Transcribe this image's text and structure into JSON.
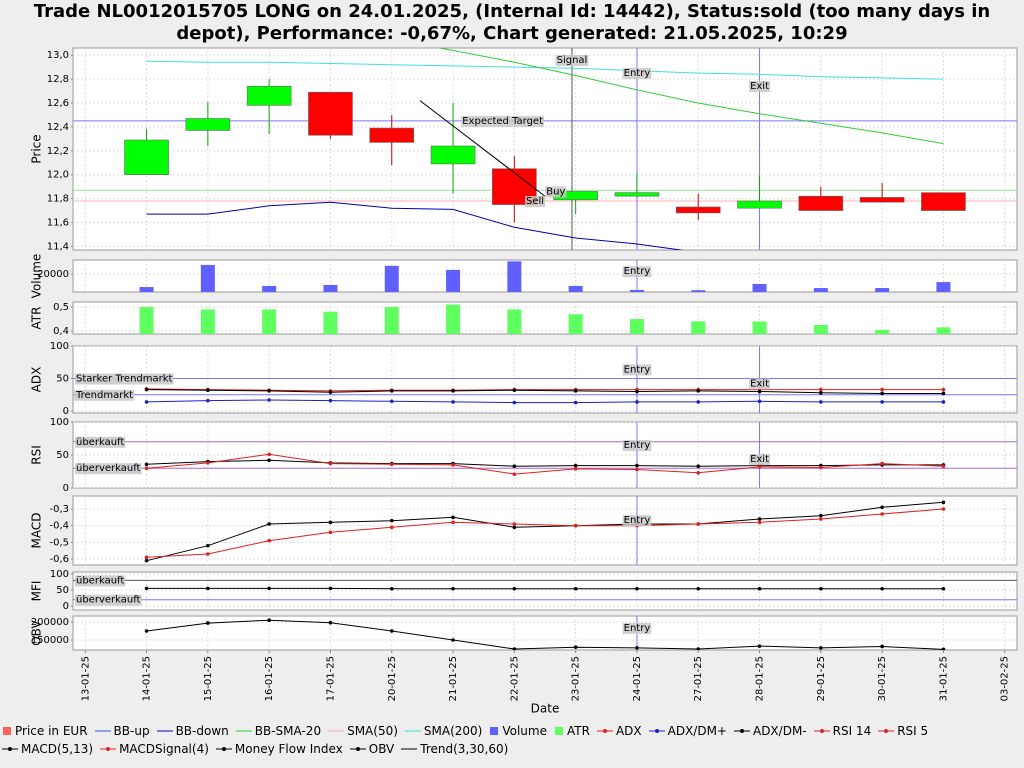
{
  "title": [
    "Trade NL0012015705 LONG on 24.01.2025, (Internal Id: 14442), Status:sold (too many days in",
    "depot), Performance: -0,67%, Chart generated: 21.05.2025, 10:29"
  ],
  "legend": [
    {
      "name": "Price in EUR",
      "color": "#ff6060",
      "marker": "square"
    },
    {
      "name": "BB-up",
      "color": "#3050ff",
      "marker": "line"
    },
    {
      "name": "BB-down",
      "color": "#0000aa",
      "marker": "line"
    },
    {
      "name": "BB-SMA-20",
      "color": "#33cc33",
      "marker": "line"
    },
    {
      "name": "SMA(50)",
      "color": "#ffb0b0",
      "marker": "line"
    },
    {
      "name": "SMA(200)",
      "color": "#40e0e0",
      "marker": "line"
    },
    {
      "name": "Volume",
      "color": "#6060ff",
      "marker": "square"
    },
    {
      "name": "ATR",
      "color": "#60ff60",
      "marker": "square"
    },
    {
      "name": "ADX",
      "color": "#e02020",
      "marker": "line-dot"
    },
    {
      "name": "ADX/DM+",
      "color": "#2020c0",
      "marker": "line-dot"
    },
    {
      "name": "ADX/DM-",
      "color": "#000000",
      "marker": "line-dot"
    },
    {
      "name": "RSI 14",
      "color": "#e02020",
      "marker": "line-dot"
    },
    {
      "name": "RSI 5",
      "color": "#e02020",
      "marker": "line-dot"
    },
    {
      "name": "MACD(5,13)",
      "color": "#000000",
      "marker": "line-dot"
    },
    {
      "name": "MACDSignal(4)",
      "color": "#e02020",
      "marker": "line-dot"
    },
    {
      "name": "Money Flow Index",
      "color": "#000000",
      "marker": "line-dot"
    },
    {
      "name": "OBV",
      "color": "#000000",
      "marker": "line-dot"
    },
    {
      "name": "Trend(3,30,60)",
      "color": "#000000",
      "marker": "line"
    }
  ],
  "chart_data": [
    {
      "type": "candlestick",
      "ylabel": "Price",
      "ylim": [
        11.37,
        13.06
      ],
      "grid": true,
      "yticks": [
        {
          "value": 11.4,
          "label": "11,4"
        },
        {
          "value": 11.6,
          "label": "11,6"
        },
        {
          "value": 11.8,
          "label": "11,8"
        },
        {
          "value": 12.0,
          "label": "12,0"
        },
        {
          "value": 12.2,
          "label": "12,2"
        },
        {
          "value": 12.4,
          "label": "12,4"
        },
        {
          "value": 12.6,
          "label": "12,6"
        },
        {
          "value": 12.8,
          "label": "12,8"
        },
        {
          "value": 13.0,
          "label": "13,0"
        }
      ],
      "candles": {
        "up_color": "#00ff00",
        "down_color": "#ff0000",
        "open": [
          null,
          12.0,
          12.37,
          12.58,
          12.69,
          12.39,
          12.09,
          12.05,
          11.79,
          11.82,
          11.73,
          11.72,
          11.82,
          11.81,
          11.85,
          null
        ],
        "high": [
          null,
          12.38,
          12.61,
          12.8,
          12.69,
          12.5,
          12.6,
          12.16,
          11.86,
          12.01,
          11.84,
          11.99,
          11.9,
          11.93,
          11.85,
          null
        ],
        "low": [
          null,
          12.0,
          12.24,
          12.34,
          12.3,
          12.08,
          11.84,
          11.6,
          11.67,
          11.81,
          11.62,
          11.72,
          11.7,
          11.77,
          11.7,
          null
        ],
        "close": [
          null,
          12.29,
          12.47,
          12.74,
          12.33,
          12.27,
          12.24,
          11.75,
          11.86,
          11.85,
          11.68,
          11.78,
          11.7,
          11.77,
          11.7,
          null
        ]
      },
      "series": [
        {
          "color": "#0000aa",
          "values": [
            null,
            11.67,
            11.67,
            11.74,
            11.77,
            11.72,
            11.71,
            11.56,
            11.47,
            11.42,
            11.35,
            null,
            null,
            null,
            null,
            null
          ]
        },
        {
          "color": "#40e0e0",
          "values": [
            null,
            12.95,
            12.94,
            12.94,
            12.93,
            12.92,
            12.91,
            12.9,
            12.89,
            12.87,
            12.85,
            12.84,
            12.82,
            12.81,
            12.8,
            null
          ]
        },
        {
          "color": "#33cc33",
          "values": [
            null,
            null,
            null,
            null,
            null,
            13.13,
            13.04,
            12.94,
            12.83,
            12.71,
            12.6,
            12.51,
            12.43,
            12.35,
            12.26,
            null
          ]
        }
      ],
      "hlines": [
        {
          "value": 12.45,
          "color": "#7777ff",
          "label": "Expected Target"
        },
        {
          "value": 11.87,
          "color": "#99e099"
        },
        {
          "value": 11.78,
          "color": "#ffb0b0"
        }
      ],
      "vlines": [
        {
          "x": 7.94,
          "color": "#555555",
          "label": "Signal"
        },
        {
          "x": 9,
          "color": "#7777ff",
          "label": "Entry"
        },
        {
          "x": 11,
          "color": "#7777ff",
          "label": "Exit"
        }
      ],
      "trend": {
        "color": "#000000",
        "x": [
          5.46,
          7.5
        ],
        "y": [
          12.62,
          11.82
        ]
      },
      "notes": [
        {
          "text": "Buy",
          "x": 7.52,
          "y": 11.86
        },
        {
          "text": "Sell",
          "x": 7.19,
          "y": 11.78
        }
      ]
    },
    {
      "type": "bar",
      "ylabel": "Volume",
      "ylim": [
        0,
        35500
      ],
      "yticks": [
        20000
      ],
      "grid": true,
      "series": [
        {
          "color": "#6060ff",
          "values": [
            null,
            5500,
            30000,
            6700,
            7800,
            29000,
            24500,
            34000,
            6700,
            2200,
            2000,
            8900,
            4400,
            4400,
            11000,
            null
          ]
        }
      ],
      "vlines": [
        {
          "x": 9,
          "color": "#7777ff",
          "label": "Entry"
        }
      ]
    },
    {
      "type": "bar",
      "ylabel": "ATR",
      "ylim": [
        0.3875,
        0.5208
      ],
      "grid": true,
      "yticks": [
        {
          "value": 0.4,
          "label": "0,4"
        },
        {
          "value": 0.5,
          "label": "0,5"
        }
      ],
      "series": [
        {
          "color": "#60ff60",
          "values": [
            null,
            0.5,
            0.49,
            0.49,
            0.48,
            0.5,
            0.51,
            0.49,
            0.47,
            0.45,
            0.44,
            0.44,
            0.425,
            0.405,
            0.415,
            null
          ]
        }
      ]
    },
    {
      "type": "line",
      "ylabel": "ADX",
      "ylim": [
        -3,
        100
      ],
      "yticks": [
        0,
        50,
        100
      ],
      "grid": true,
      "series": [
        {
          "color": "#e02020",
          "markers": true,
          "values": [
            null,
            34,
            33,
            32,
            31,
            32,
            32,
            33,
            33,
            33,
            33,
            33,
            33,
            33,
            33,
            null
          ]
        },
        {
          "color": "#2020c0",
          "markers": true,
          "values": [
            null,
            14,
            16,
            17,
            16,
            15,
            14,
            13,
            13,
            14,
            14,
            15,
            14,
            14,
            14,
            null
          ]
        },
        {
          "color": "#000000",
          "markers": true,
          "values": [
            null,
            33,
            32,
            31,
            29,
            31,
            31,
            32,
            31,
            30,
            31,
            30,
            28,
            27,
            27,
            null
          ]
        }
      ],
      "hlines": [
        {
          "value": 50,
          "color": "#7777ff",
          "label": "Starker Trendmarkt"
        },
        {
          "value": 25,
          "color": "#7777ff",
          "label": "Trendmarkt"
        }
      ],
      "vlines": [
        {
          "x": 9,
          "color": "#7777ff",
          "label": "Entry"
        },
        {
          "x": 11,
          "color": "#7777ff",
          "label": "Exit"
        }
      ]
    },
    {
      "type": "line",
      "ylabel": "RSI",
      "ylim": [
        0,
        100
      ],
      "yticks": [
        0,
        50,
        100
      ],
      "grid": true,
      "series": [
        {
          "color": "#000000",
          "markers": true,
          "values": [
            null,
            36,
            40,
            42,
            38,
            37,
            37,
            33,
            34,
            34,
            33,
            34,
            34,
            35,
            35,
            null
          ]
        },
        {
          "color": "#e02020",
          "markers": true,
          "values": [
            null,
            30,
            38,
            51,
            37,
            36,
            35,
            21,
            29,
            28,
            23,
            32,
            31,
            37,
            33,
            null
          ]
        }
      ],
      "hlines": [
        {
          "value": 70,
          "color": "#aa66cc",
          "label": "überkauft"
        },
        {
          "value": 30,
          "color": "#aa66cc",
          "label": "überverkauft"
        }
      ],
      "vlines": [
        {
          "x": 9,
          "color": "#7777ff",
          "label": "Entry"
        },
        {
          "x": 11,
          "color": "#7777ff",
          "label": "Exit"
        }
      ]
    },
    {
      "type": "line",
      "ylabel": "MACD",
      "ylim": [
        -0.636,
        -0.222
      ],
      "grid": true,
      "yticks": [
        {
          "value": -0.6,
          "label": "-0,6"
        },
        {
          "value": -0.5,
          "label": "-0,5"
        },
        {
          "value": -0.4,
          "label": "-0,4"
        },
        {
          "value": -0.3,
          "label": "-0,3"
        }
      ],
      "series": [
        {
          "color": "#000000",
          "markers": true,
          "values": [
            null,
            -0.61,
            -0.52,
            -0.39,
            -0.38,
            -0.37,
            -0.35,
            -0.41,
            -0.4,
            -0.39,
            -0.39,
            -0.36,
            -0.34,
            -0.29,
            -0.26,
            null
          ]
        },
        {
          "color": "#e02020",
          "markers": true,
          "values": [
            null,
            -0.59,
            -0.57,
            -0.49,
            -0.44,
            -0.41,
            -0.38,
            -0.39,
            -0.4,
            -0.4,
            -0.39,
            -0.38,
            -0.36,
            -0.33,
            -0.3,
            null
          ]
        }
      ],
      "vlines": [
        {
          "x": 9,
          "color": "#7777ff",
          "label": "Entry"
        }
      ]
    },
    {
      "type": "line",
      "ylabel": "MFI",
      "ylim": [
        -12,
        106
      ],
      "yticks": [
        0,
        50,
        100
      ],
      "grid": true,
      "series": [
        {
          "color": "#000000",
          "markers": true,
          "values": [
            null,
            55,
            55,
            55,
            55,
            54,
            54,
            54,
            54,
            54,
            54,
            54,
            54,
            54,
            54,
            null
          ]
        }
      ],
      "hlines": [
        {
          "value": 80,
          "color": "#555555",
          "label": "überkauft"
        },
        {
          "value": 20,
          "color": "#7777ff",
          "label": "überverkauft"
        }
      ]
    },
    {
      "type": "line",
      "ylabel": "OBV",
      "ylim": [
        122222,
        216667
      ],
      "yticks": [
        150000,
        200000
      ],
      "grid": true,
      "xlabel": "Date",
      "categories": [
        "13-01-25",
        "14-01-25",
        "15-01-25",
        "16-01-25",
        "17-01-25",
        "20-01-25",
        "21-01-25",
        "22-01-25",
        "23-01-25",
        "24-01-25",
        "27-01-25",
        "28-01-25",
        "29-01-25",
        "30-01-25",
        "31-01-25",
        "03-02-25"
      ],
      "series": [
        {
          "color": "#000000",
          "markers": true,
          "values": [
            null,
            175000,
            197000,
            205000,
            198000,
            175000,
            150000,
            125000,
            130000,
            128000,
            125000,
            133000,
            128000,
            132000,
            124000,
            null
          ]
        }
      ],
      "vlines": [
        {
          "x": 9,
          "color": "#7777ff",
          "label": "Entry"
        }
      ]
    }
  ]
}
